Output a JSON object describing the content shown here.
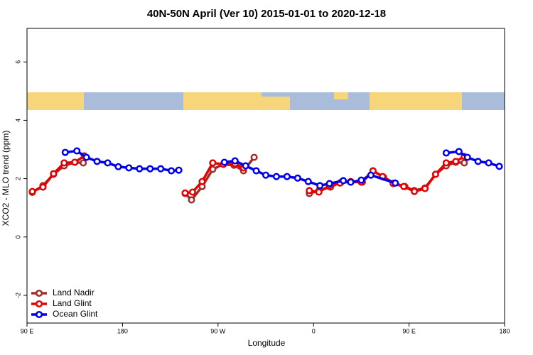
{
  "chart_data": {
    "type": "line",
    "title": "40N-50N April (Ver 10)   2015-01-01 to 2020-12-18",
    "xlabel": "Longitude",
    "ylabel": "XCO2 - MLO trend (ppm)",
    "xlim": [
      90,
      540
    ],
    "ylim": [
      -2.95,
      7.15
    ],
    "xticks": [
      {
        "value": 90,
        "label": "90 E"
      },
      180,
      {
        "value": 270,
        "label": "90 W"
      },
      {
        "value": 360,
        "label": "0"
      },
      {
        "value": 450,
        "label": "90 E"
      },
      {
        "value": 540,
        "label": "180"
      }
    ],
    "yticks": [
      -2,
      0,
      2,
      4,
      6
    ],
    "legend": "bottom-left",
    "series": [
      {
        "name": "Land Nadir",
        "color": "#a52a2a",
        "x": [
          95,
          105,
          115,
          125,
          135,
          143,
          190,
          239,
          245,
          255,
          265,
          275,
          285,
          294,
          304,
          330,
          356,
          365,
          376,
          386,
          395,
          406,
          416,
          426,
          436,
          446,
          455,
          465,
          475,
          485,
          494,
          502
        ],
        "values": [
          1.53,
          1.76,
          2.15,
          2.44,
          2.56,
          2.54,
          null,
          1.49,
          1.27,
          1.73,
          2.32,
          2.49,
          2.46,
          2.27,
          2.73,
          null,
          1.49,
          1.59,
          1.71,
          1.88,
          1.88,
          1.88,
          2.27,
          2.05,
          1.85,
          1.73,
          1.59,
          1.68,
          2.15,
          2.44,
          2.56,
          2.54
        ]
      },
      {
        "name": "Land Glint",
        "color": "#e60000",
        "x": [
          95,
          105,
          115,
          125,
          135,
          144,
          190,
          239,
          246,
          255,
          265,
          275,
          286,
          294,
          325,
          356,
          365,
          375,
          385,
          395,
          405,
          416,
          425,
          435,
          445,
          455,
          465,
          475,
          485,
          494,
          502
        ],
        "values": [
          1.56,
          1.71,
          2.17,
          2.54,
          2.56,
          2.78,
          null,
          1.51,
          1.54,
          1.9,
          2.54,
          2.49,
          2.51,
          2.37,
          null,
          1.59,
          1.54,
          1.76,
          1.85,
          1.9,
          1.88,
          2.27,
          2.07,
          1.83,
          1.73,
          1.56,
          1.66,
          2.15,
          2.54,
          2.59,
          2.76
        ]
      },
      {
        "name": "Ocean Glint",
        "color": "#0000ee",
        "x": [
          126,
          137,
          146,
          156,
          166,
          176,
          186,
          196,
          206,
          216,
          226,
          233,
          254,
          276,
          286,
          296,
          306,
          315,
          325,
          335,
          345,
          355,
          366,
          375,
          388,
          395,
          405,
          414,
          437,
          460,
          485,
          497,
          505,
          515,
          525,
          535
        ],
        "values": [
          2.9,
          2.95,
          2.73,
          2.59,
          2.54,
          2.41,
          2.37,
          2.34,
          2.34,
          2.34,
          2.27,
          2.29,
          null,
          2.56,
          2.61,
          2.44,
          2.27,
          2.12,
          2.07,
          2.07,
          2.02,
          1.9,
          1.76,
          1.83,
          1.93,
          1.88,
          1.95,
          2.12,
          1.85,
          null,
          2.88,
          2.93,
          2.73,
          2.59,
          2.54,
          2.42
        ]
      }
    ]
  }
}
